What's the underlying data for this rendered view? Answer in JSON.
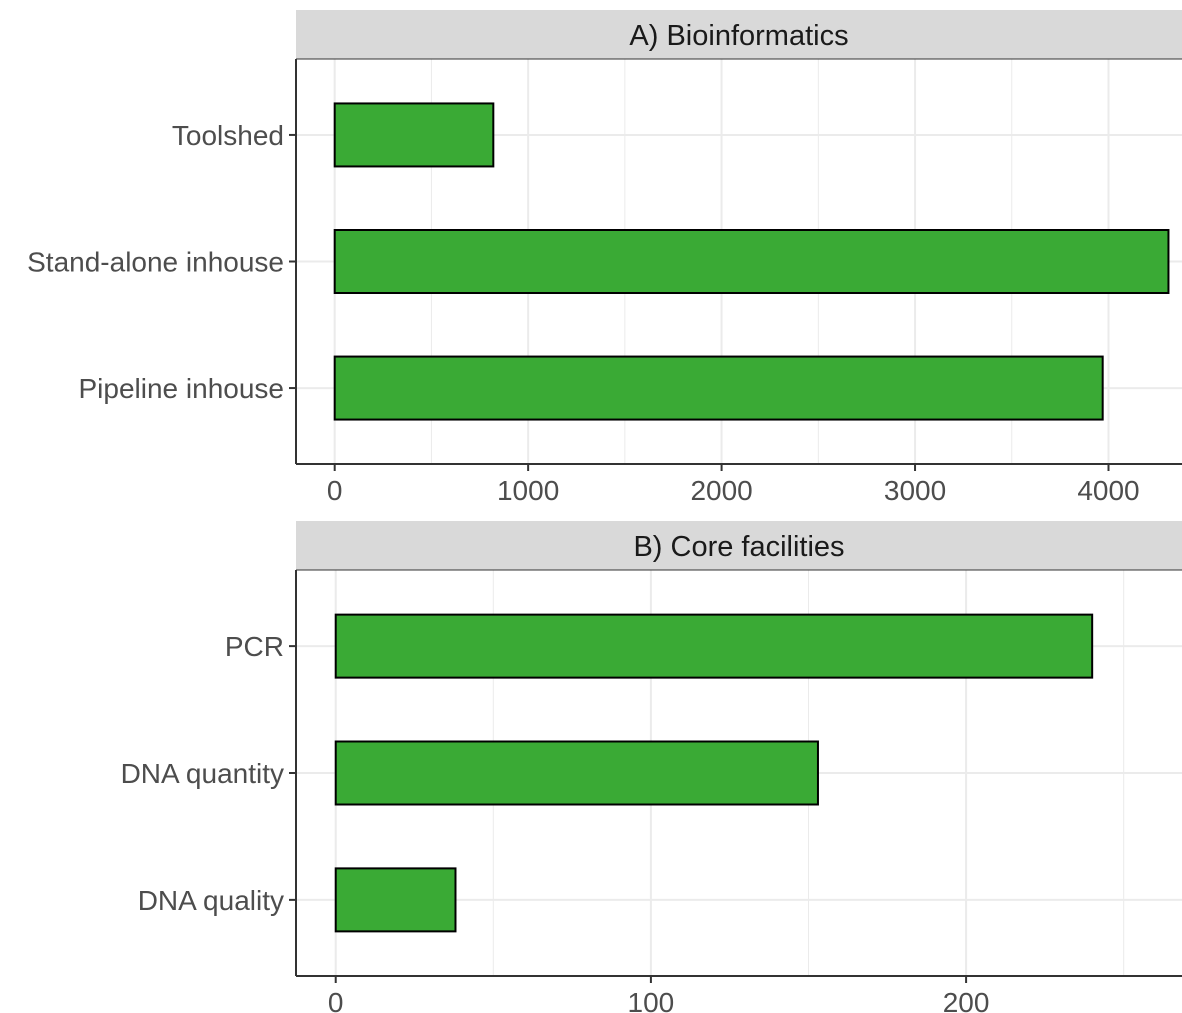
{
  "colors": {
    "bar_fill": "#3aaa35",
    "bar_stroke": "#000000",
    "strip_bg": "#d9d9d9",
    "grid": "#ebebeb",
    "panel_border": "#333333",
    "tick_text": "#4d4d4d"
  },
  "chart_data": [
    {
      "type": "bar",
      "orientation": "horizontal",
      "title": "A) Bioinformatics",
      "categories": [
        "Toolshed",
        "Stand-alone inhouse",
        "Pipeline inhouse"
      ],
      "values": [
        820,
        4310,
        3970
      ],
      "xlim": [
        -200,
        4380
      ],
      "xticks": [
        0,
        1000,
        2000,
        3000,
        4000
      ],
      "xtick_labels": [
        "0",
        "1000",
        "2000",
        "3000",
        "4000"
      ],
      "xminor": [
        500,
        1500,
        2500,
        3500
      ],
      "grid": true
    },
    {
      "type": "bar",
      "orientation": "horizontal",
      "title": "B) Core facilities",
      "categories": [
        "PCR",
        "DNA quantity",
        "DNA quality"
      ],
      "values": [
        240,
        153,
        38
      ],
      "xlim": [
        -12.6,
        268.5
      ],
      "xticks": [
        0,
        100,
        200
      ],
      "xtick_labels": [
        "0",
        "100",
        "200"
      ],
      "xminor": [
        50,
        150,
        250
      ],
      "grid": true
    }
  ]
}
